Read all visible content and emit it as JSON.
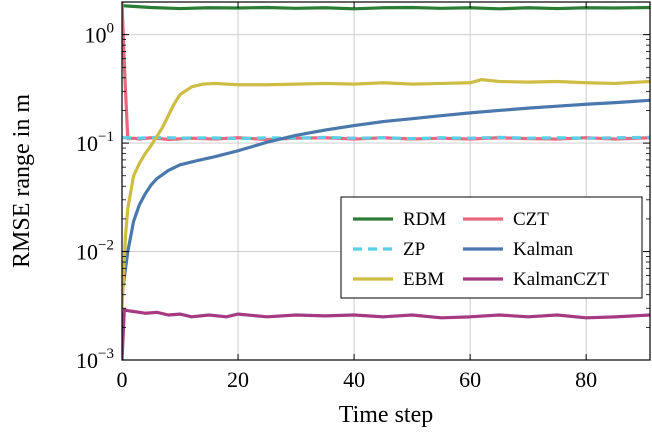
{
  "chart_data": {
    "type": "line",
    "xlabel": "Time step",
    "ylabel": "RMSE range in m",
    "xlim": [
      0,
      91
    ],
    "ylim": [
      0.001,
      2.0
    ],
    "yscale": "log",
    "xticks": [
      0,
      20,
      40,
      60,
      80
    ],
    "xtick_labels": [
      "0",
      "20",
      "40",
      "60",
      "80"
    ],
    "yticks": [
      0.001,
      0.01,
      0.1,
      1
    ],
    "ytick_labels": [
      {
        "base": "10",
        "exp": "−3"
      },
      {
        "base": "10",
        "exp": "−2"
      },
      {
        "base": "10",
        "exp": "−1"
      },
      {
        "base": "10",
        "exp": "0"
      }
    ],
    "grid": true,
    "legend_position": "lower-right",
    "legend_columns": 2,
    "series": [
      {
        "name": "RDM",
        "color": "#2a7d34",
        "dash": "solid",
        "x": [
          0,
          5,
          10,
          15,
          20,
          25,
          30,
          35,
          40,
          45,
          50,
          55,
          60,
          65,
          70,
          75,
          80,
          85,
          91
        ],
        "y": [
          1.85,
          1.78,
          1.74,
          1.77,
          1.76,
          1.78,
          1.75,
          1.77,
          1.73,
          1.77,
          1.78,
          1.75,
          1.77,
          1.73,
          1.77,
          1.74,
          1.77,
          1.76,
          1.78
        ]
      },
      {
        "name": "CZT",
        "color": "#e8677d",
        "dash": "solid",
        "x": [
          0,
          0.5,
          1,
          2,
          3,
          5,
          8,
          12,
          16,
          20,
          25,
          30,
          35,
          40,
          45,
          50,
          55,
          60,
          65,
          70,
          75,
          80,
          85,
          91
        ],
        "y": [
          2.0,
          0.4,
          0.11,
          0.111,
          0.109,
          0.112,
          0.108,
          0.111,
          0.109,
          0.112,
          0.108,
          0.111,
          0.112,
          0.109,
          0.112,
          0.109,
          0.111,
          0.109,
          0.112,
          0.11,
          0.109,
          0.112,
          0.109,
          0.112
        ]
      },
      {
        "name": "ZP",
        "color": "#5ccfe6",
        "dash": "dashed",
        "x": [
          0,
          3,
          6,
          10,
          15,
          20,
          25,
          30,
          35,
          40,
          45,
          50,
          55,
          60,
          65,
          70,
          75,
          80,
          85,
          91
        ],
        "y": [
          0.112,
          0.111,
          0.113,
          0.111,
          0.112,
          0.11,
          0.112,
          0.111,
          0.113,
          0.111,
          0.112,
          0.11,
          0.112,
          0.111,
          0.113,
          0.111,
          0.112,
          0.111,
          0.112,
          0.113
        ]
      },
      {
        "name": "Kalman",
        "color": "#4a78ad",
        "dash": "solid",
        "x": [
          0,
          1,
          2,
          3,
          4,
          5,
          6,
          8,
          10,
          13,
          16,
          20,
          25,
          30,
          35,
          40,
          45,
          50,
          55,
          60,
          65,
          70,
          75,
          80,
          85,
          91
        ],
        "y": [
          0.004,
          0.01,
          0.019,
          0.027,
          0.034,
          0.041,
          0.047,
          0.056,
          0.063,
          0.069,
          0.075,
          0.085,
          0.102,
          0.118,
          0.132,
          0.145,
          0.158,
          0.168,
          0.179,
          0.19,
          0.2,
          0.21,
          0.219,
          0.228,
          0.236,
          0.248
        ]
      },
      {
        "name": "EBM",
        "color": "#cdbd44",
        "dash": "solid",
        "x": [
          0,
          0.6,
          1,
          2,
          3,
          4,
          5,
          6,
          7,
          8,
          9,
          10,
          12,
          14,
          16,
          20,
          25,
          30,
          35,
          40,
          45,
          50,
          55,
          60,
          62,
          65,
          70,
          75,
          80,
          85,
          91
        ],
        "y": [
          0.003,
          0.014,
          0.025,
          0.05,
          0.065,
          0.08,
          0.095,
          0.115,
          0.14,
          0.18,
          0.23,
          0.28,
          0.33,
          0.35,
          0.355,
          0.345,
          0.345,
          0.35,
          0.355,
          0.35,
          0.36,
          0.35,
          0.355,
          0.36,
          0.385,
          0.37,
          0.365,
          0.37,
          0.36,
          0.355,
          0.37
        ]
      },
      {
        "name": "KalmanCZT",
        "color": "#a53a82",
        "dash": "solid",
        "x": [
          0,
          0.4,
          1,
          2,
          4,
          6,
          8,
          10,
          12,
          15,
          18,
          20,
          25,
          30,
          35,
          40,
          45,
          50,
          55,
          60,
          65,
          70,
          75,
          80,
          85,
          91
        ],
        "y": [
          0.001,
          0.0029,
          0.00285,
          0.0028,
          0.0027,
          0.00275,
          0.0026,
          0.00265,
          0.0025,
          0.0026,
          0.0025,
          0.00265,
          0.0025,
          0.0026,
          0.00255,
          0.0026,
          0.0025,
          0.0026,
          0.00245,
          0.0025,
          0.0026,
          0.0025,
          0.0026,
          0.00245,
          0.0025,
          0.0026
        ]
      }
    ],
    "legend": [
      {
        "name": "RDM",
        "color": "#2a7d34",
        "dash": "solid"
      },
      {
        "name": "CZT",
        "color": "#e8677d",
        "dash": "solid"
      },
      {
        "name": "ZP",
        "color": "#5ccfe6",
        "dash": "dashed"
      },
      {
        "name": "Kalman",
        "color": "#4a78ad",
        "dash": "solid"
      },
      {
        "name": "EBM",
        "color": "#cdbd44",
        "dash": "solid"
      },
      {
        "name": "KalmanCZT",
        "color": "#a53a82",
        "dash": "solid"
      }
    ]
  }
}
